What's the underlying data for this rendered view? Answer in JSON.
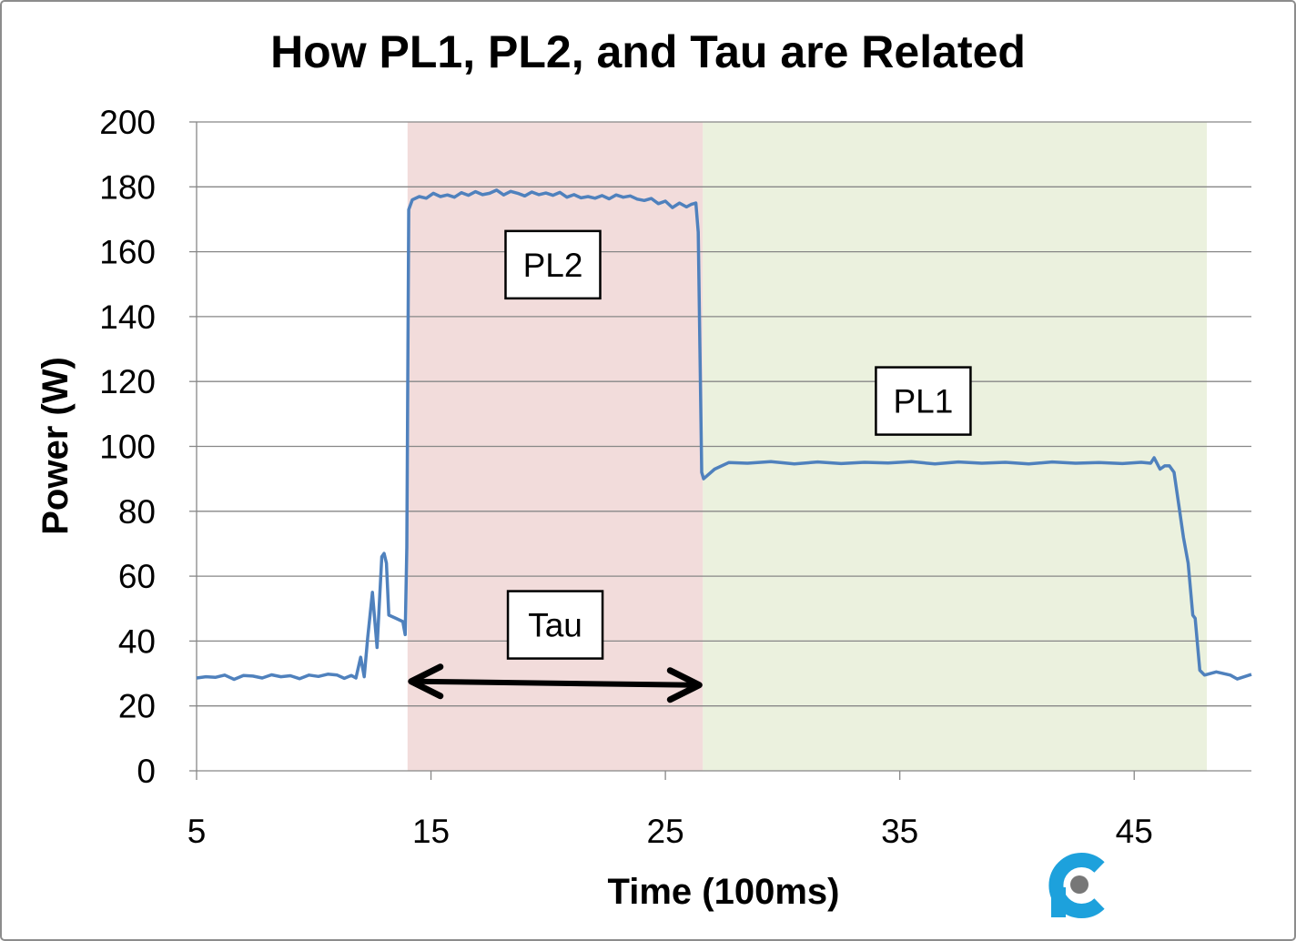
{
  "chart_data": {
    "type": "line",
    "title": "How PL1, PL2, and Tau are Related",
    "xlabel": "Time (100ms)",
    "ylabel": "Power (W)",
    "xlim": [
      5,
      50
    ],
    "ylim": [
      0,
      200
    ],
    "xticks": [
      5,
      15,
      25,
      35,
      45
    ],
    "yticks": [
      0,
      20,
      40,
      60,
      80,
      100,
      120,
      140,
      160,
      180,
      200
    ],
    "grid": "horizontal",
    "series_color": "#4F81BD",
    "regions": [
      {
        "label": "PL2",
        "x_start": 14.0,
        "x_end": 26.6,
        "color": "#F2DCDB"
      },
      {
        "label": "PL1",
        "x_start": 26.6,
        "x_end": 48.1,
        "color": "#EBF1DE"
      }
    ],
    "annotations": [
      {
        "text": "PL2",
        "x": 20.2,
        "y": 156
      },
      {
        "text": "PL1",
        "x": 36.0,
        "y": 114
      },
      {
        "text": "Tau",
        "x": 20.3,
        "y": 45
      }
    ],
    "tau_arrow": {
      "x_start": 14.0,
      "x_end": 26.6,
      "y": 27
    },
    "series": [
      {
        "x": [
          5,
          5.4,
          5.8,
          6.2,
          6.6,
          7.0,
          7.4,
          7.8,
          8.2,
          8.6,
          9.0,
          9.4,
          9.8,
          10.2,
          10.6,
          11.0,
          11.3,
          11.6,
          11.8,
          12.0,
          12.15,
          12.3,
          12.5,
          12.7,
          12.9,
          13.0,
          13.1,
          13.2,
          13.5,
          13.8,
          13.9,
          13.97,
          14.05,
          14.2,
          14.5,
          14.8,
          15.1,
          15.4,
          15.7,
          16.0,
          16.3,
          16.6,
          16.9,
          17.2,
          17.5,
          17.8,
          18.1,
          18.4,
          18.7,
          19.0,
          19.3,
          19.6,
          19.9,
          20.2,
          20.5,
          20.8,
          21.1,
          21.4,
          21.7,
          22.0,
          22.3,
          22.6,
          22.9,
          23.2,
          23.5,
          23.8,
          24.1,
          24.4,
          24.7,
          25.0,
          25.3,
          25.6,
          25.9,
          26.1,
          26.3,
          26.4,
          26.55,
          26.63,
          27.1,
          27.7,
          28.5,
          29.5,
          30.5,
          31.5,
          32.5,
          33.5,
          34.5,
          35.5,
          36.5,
          37.5,
          38.5,
          39.5,
          40.5,
          41.5,
          42.5,
          43.5,
          44.5,
          45.3,
          45.7,
          45.85,
          46.1,
          46.3,
          46.5,
          46.7,
          46.9,
          47.1,
          47.3,
          47.5,
          47.6,
          47.8,
          48.0,
          48.5,
          49.1,
          49.4,
          50
        ],
        "y": [
          28.6,
          29,
          28.8,
          29.5,
          28.2,
          29.4,
          29.2,
          28.6,
          29.6,
          29,
          29.3,
          28.4,
          29.5,
          29.1,
          29.8,
          29.5,
          28.5,
          29.4,
          28.6,
          35,
          29,
          41,
          55,
          38,
          66,
          67,
          64,
          48,
          47,
          46,
          42,
          69,
          173,
          176,
          177,
          176.5,
          178,
          177,
          177.5,
          176.8,
          178.2,
          177.4,
          178.5,
          177.6,
          178,
          179,
          177.5,
          178.6,
          178,
          177.2,
          178.4,
          177.6,
          178.1,
          177.4,
          178.3,
          176.8,
          177.6,
          176.6,
          177,
          176.5,
          177.3,
          176.3,
          177.5,
          176.8,
          177.2,
          176.2,
          175.8,
          176.4,
          174.8,
          175.6,
          173.6,
          175,
          173.8,
          174.6,
          175,
          166,
          92,
          90,
          93,
          95,
          94.8,
          95.3,
          94.6,
          95.2,
          94.7,
          95.1,
          94.9,
          95.3,
          94.6,
          95.2,
          94.8,
          95.1,
          94.6,
          95.2,
          94.8,
          95,
          94.7,
          95.1,
          94.8,
          96.5,
          93,
          94,
          94,
          92,
          82,
          72,
          64,
          48,
          47,
          31,
          29.5,
          30.5,
          29.5,
          28.3,
          29.7
        ]
      }
    ]
  },
  "watermark": "logo"
}
